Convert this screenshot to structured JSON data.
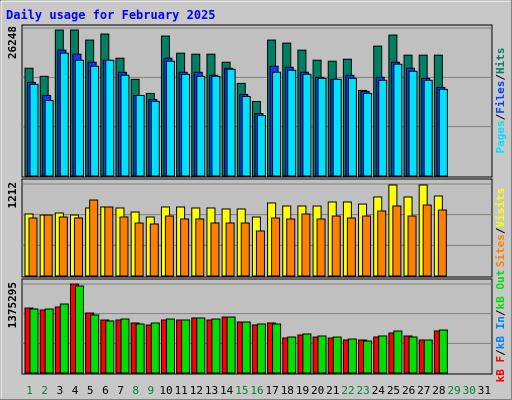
{
  "chart_data": [
    {
      "type": "bar",
      "title": "Daily usage for February 2025",
      "draw_front": "first",
      "legend_separator": "/",
      "grid_divisions": 3,
      "ylim": [
        0,
        26248
      ],
      "yticks": [
        26248
      ],
      "series": [
        {
          "name": "Pages",
          "color": "#00e0ff",
          "values": [
            16249,
            13392,
            21784,
            20534,
            19463,
            20534,
            17856,
            14285,
            13213,
            20356,
            18035,
            17677,
            17677,
            18927,
            14106,
            10714,
            18392,
            18749,
            18035,
            17320,
            17142,
            17320,
            14642,
            16963,
            19820,
            18570,
            16963,
            15356,
            null,
            null,
            null
          ]
        },
        {
          "name": "Files",
          "color": "#0040ff",
          "values": [
            16606,
            14285,
            22320,
            21606,
            20177,
            20534,
            18392,
            14285,
            13571,
            20892,
            18392,
            18392,
            17856,
            19106,
            14463,
            11071,
            19463,
            19284,
            18392,
            17499,
            17142,
            17856,
            14999,
            17499,
            20177,
            19106,
            17320,
            15713,
            null,
            null,
            null
          ]
        },
        {
          "name": "Hits",
          "color": "#008060",
          "values": [
            19106,
            17677,
            25891,
            25891,
            24106,
            25177,
            20892,
            17142,
            14642,
            24820,
            21784,
            21606,
            21606,
            20177,
            16427,
            13213,
            24106,
            23570,
            22320,
            20534,
            20356,
            20713,
            15178,
            23034,
            24998,
            21427,
            21427,
            21427,
            null,
            null,
            null
          ]
        }
      ]
    },
    {
      "type": "bar",
      "draw_front": "first",
      "legend_separator": "/",
      "grid_divisions": 3,
      "ylim": [
        0,
        1212
      ],
      "yticks": [
        1212
      ],
      "series": [
        {
          "name": "Sites",
          "color": "#ff8000",
          "values": [
            764,
            803,
            777,
            764,
            1001,
            909,
            777,
            698,
            685,
            790,
            751,
            751,
            698,
            698,
            698,
            593,
            764,
            751,
            817,
            751,
            790,
            764,
            790,
            856,
            922,
            790,
            935,
            869,
            null,
            null,
            null
          ]
        },
        {
          "name": "Visits",
          "color": "#ffff00",
          "values": [
            817,
            803,
            830,
            803,
            896,
            909,
            896,
            843,
            777,
            909,
            909,
            896,
            896,
            883,
            883,
            777,
            962,
            922,
            922,
            922,
            975,
            975,
            948,
            1041,
            1199,
            1041,
            1199,
            1054,
            null,
            null,
            null
          ]
        }
      ]
    },
    {
      "type": "bar",
      "draw_front": "last",
      "legend_separator": "/",
      "grid_divisions": 3,
      "ylim": [
        0,
        1375295
      ],
      "yticks": [
        1375295
      ],
      "categories": [
        "1",
        "2",
        "3",
        "4",
        "5",
        "6",
        "7",
        "8",
        "9",
        "10",
        "11",
        "12",
        "13",
        "14",
        "15",
        "16",
        "17",
        "18",
        "19",
        "20",
        "21",
        "22",
        "23",
        "24",
        "25",
        "26",
        "27",
        "28",
        "29",
        "30",
        "31"
      ],
      "category_colors": [
        "#008040",
        "#008040",
        "#000000",
        "#000000",
        "#000000",
        "#000000",
        "#000000",
        "#008040",
        "#008040",
        "#000000",
        "#000000",
        "#000000",
        "#000000",
        "#000000",
        "#008040",
        "#008040",
        "#000000",
        "#000000",
        "#000000",
        "#000000",
        "#000000",
        "#008040",
        "#008040",
        "#000000",
        "#000000",
        "#000000",
        "#000000",
        "#000000",
        "#008040",
        "#008040",
        "#000000"
      ],
      "series": [
        {
          "name": "kB F",
          "color": "#ff0000",
          "values": [
            1004000,
            974000,
            1020000,
            1375295,
            927000,
            819000,
            819000,
            773000,
            742000,
            819000,
            819000,
            850000,
            819000,
            865000,
            788000,
            742000,
            773000,
            541000,
            587000,
            556000,
            541000,
            510000,
            510000,
            556000,
            618000,
            572000,
            510000,
            649000,
            null,
            null,
            null
          ]
        },
        {
          "name": "kB In",
          "color": "#0080ff",
          "values": [
            null,
            null,
            null,
            null,
            null,
            null,
            null,
            null,
            null,
            null,
            null,
            null,
            null,
            null,
            null,
            null,
            null,
            null,
            null,
            null,
            null,
            null,
            null,
            null,
            null,
            null,
            null,
            null,
            null,
            null,
            null
          ]
        },
        {
          "name": "kB Out",
          "color": "#00e000",
          "values": [
            989000,
            989000,
            1066000,
            1344000,
            896000,
            804000,
            834000,
            757000,
            773000,
            834000,
            819000,
            850000,
            834000,
            865000,
            788000,
            757000,
            757000,
            556000,
            603000,
            572000,
            556000,
            525000,
            494000,
            572000,
            649000,
            556000,
            510000,
            664000,
            null,
            null,
            null
          ]
        }
      ]
    }
  ]
}
